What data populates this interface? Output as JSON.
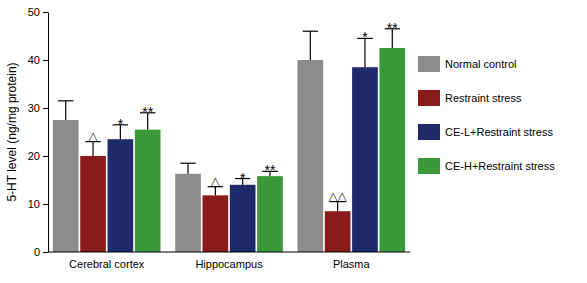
{
  "chart_data": {
    "type": "bar",
    "y_label": "5-HT level (ng/mg protein)",
    "categories": [
      "Cerebral cortex",
      "Hippocampus",
      "Plasma"
    ],
    "series": [
      {
        "name": "Normal control",
        "color": "#8c8c8c",
        "values": [
          27.5,
          16.3,
          40.0
        ],
        "errors": [
          4.0,
          2.2,
          6.0
        ]
      },
      {
        "name": "Restraint stress",
        "color": "#8b1a1a",
        "values": [
          20.0,
          11.8,
          8.5
        ],
        "errors": [
          3.0,
          1.8,
          2.0
        ],
        "annotations": [
          "△",
          "△",
          "△△"
        ]
      },
      {
        "name": "CE-L+Restraint stress",
        "color": "#1f2a6b",
        "values": [
          23.5,
          14.0,
          38.5
        ],
        "errors": [
          3.0,
          1.3,
          6.0
        ],
        "annotations": [
          "*",
          "*",
          "*"
        ]
      },
      {
        "name": "CE-H+Restraint stress",
        "color": "#3a9a3a",
        "values": [
          25.5,
          15.8,
          42.5
        ],
        "errors": [
          3.5,
          1.0,
          4.0
        ],
        "annotations": [
          "**",
          "**",
          "**"
        ]
      }
    ],
    "ylim": [
      0,
      50
    ],
    "yticks": [
      0,
      10,
      20,
      30,
      40,
      50
    ],
    "grid": false
  }
}
